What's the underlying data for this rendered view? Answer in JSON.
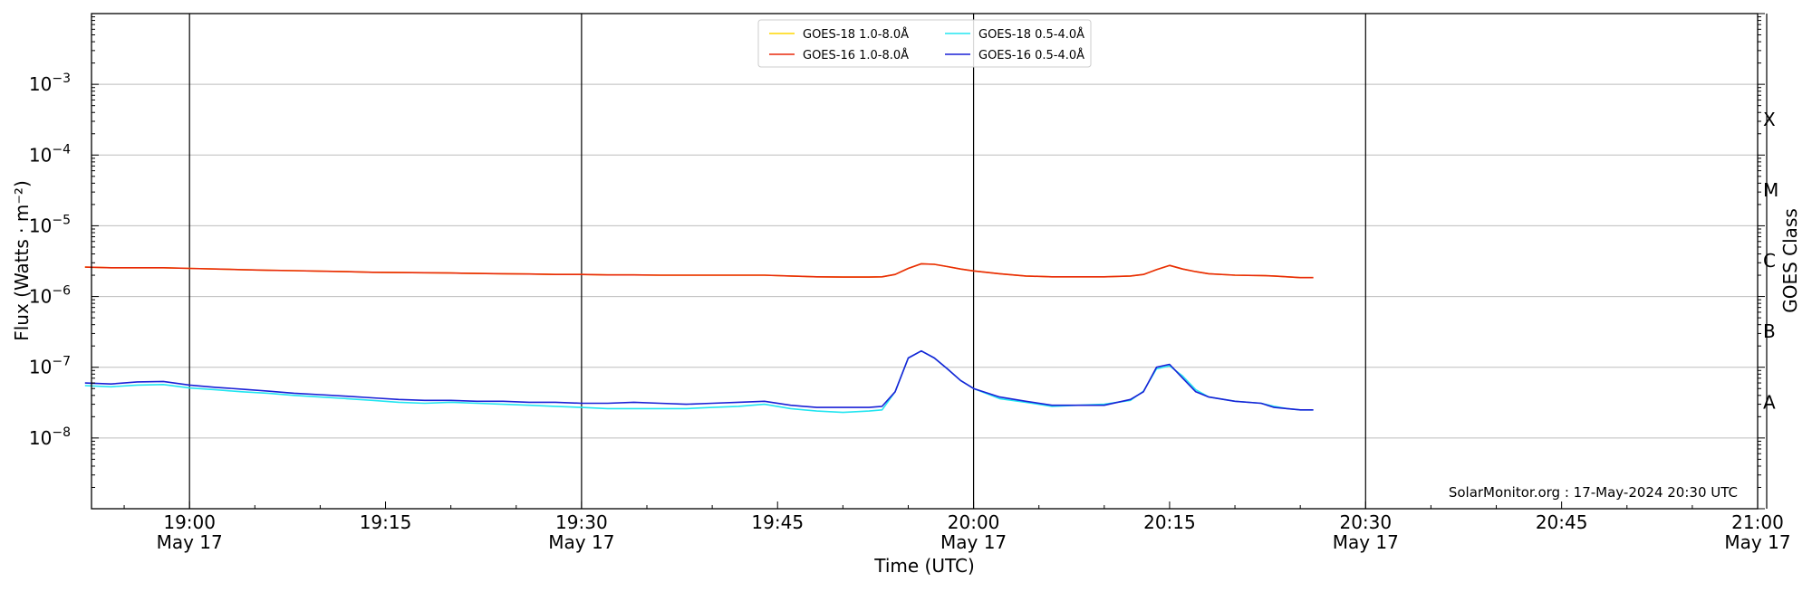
{
  "chart_data": {
    "type": "line",
    "y_scale": "log",
    "ylabel": "Flux (Watts · m⁻²)",
    "ylabel_right": "GOES Class",
    "xlabel": "Time (UTC)",
    "ylim": [
      1e-09,
      0.01
    ],
    "xlim": [
      "2024-05-17T18:52:30",
      "2024-05-17T21:00:00"
    ],
    "grid": "horizontal at decades; vertical at 30-minute marks",
    "legend": {
      "placement": "top-center",
      "columns": 2
    },
    "watermark": "SolarMonitor.org : 17-May-2024 20:30 UTC",
    "y_ticks": [
      {
        "value": 0.001,
        "base": "10",
        "exp": "−3"
      },
      {
        "value": 0.0001,
        "base": "10",
        "exp": "−4"
      },
      {
        "value": 1e-05,
        "base": "10",
        "exp": "−5"
      },
      {
        "value": 1e-06,
        "base": "10",
        "exp": "−6"
      },
      {
        "value": 1e-07,
        "base": "10",
        "exp": "−7"
      },
      {
        "value": 1e-08,
        "base": "10",
        "exp": "−8"
      }
    ],
    "x_ticks": [
      {
        "time": "2024-05-17T19:00:00",
        "label": "19:00",
        "date": "May 17"
      },
      {
        "time": "2024-05-17T19:15:00",
        "label": "19:15",
        "date": ""
      },
      {
        "time": "2024-05-17T19:30:00",
        "label": "19:30",
        "date": "May 17"
      },
      {
        "time": "2024-05-17T19:45:00",
        "label": "19:45",
        "date": ""
      },
      {
        "time": "2024-05-17T20:00:00",
        "label": "20:00",
        "date": "May 17"
      },
      {
        "time": "2024-05-17T20:15:00",
        "label": "20:15",
        "date": ""
      },
      {
        "time": "2024-05-17T20:30:00",
        "label": "20:30",
        "date": "May 17"
      },
      {
        "time": "2024-05-17T20:45:00",
        "label": "20:45",
        "date": ""
      },
      {
        "time": "2024-05-17T21:00:00",
        "label": "21:00",
        "date": "May 17"
      }
    ],
    "class_labels": [
      {
        "label": "X",
        "flux": 0.00032
      },
      {
        "label": "M",
        "flux": 3.2e-05
      },
      {
        "label": "C",
        "flux": 3.2e-06
      },
      {
        "label": "B",
        "flux": 3.2e-07
      },
      {
        "label": "A",
        "flux": 3.2e-08
      }
    ],
    "x": [
      "18:52",
      "18:54",
      "18:56",
      "18:58",
      "19:00",
      "19:02",
      "19:04",
      "19:06",
      "19:08",
      "19:10",
      "19:12",
      "19:14",
      "19:16",
      "19:18",
      "19:20",
      "19:22",
      "19:24",
      "19:26",
      "19:28",
      "19:30",
      "19:32",
      "19:34",
      "19:36",
      "19:38",
      "19:40",
      "19:42",
      "19:44",
      "19:46",
      "19:48",
      "19:50",
      "19:52",
      "19:53",
      "19:54",
      "19:55",
      "19:56",
      "19:57",
      "19:58",
      "19:59",
      "20:00",
      "20:02",
      "20:04",
      "20:06",
      "20:08",
      "20:10",
      "20:12",
      "20:13",
      "20:14",
      "20:15",
      "20:16",
      "20:17",
      "20:18",
      "20:20",
      "20:22",
      "20:23",
      "20:24",
      "20:25",
      "20:26"
    ],
    "series": [
      {
        "name": "GOES-18 1.0-8.0Å",
        "color": "#ffd700",
        "values": [
          2.6e-06,
          2.55e-06,
          2.55e-06,
          2.55e-06,
          2.5e-06,
          2.45e-06,
          2.4e-06,
          2.35e-06,
          2.32e-06,
          2.28e-06,
          2.25e-06,
          2.2e-06,
          2.18e-06,
          2.17e-06,
          2.15e-06,
          2.12e-06,
          2.1e-06,
          2.08e-06,
          2.05e-06,
          2.05e-06,
          2.02e-06,
          2.02e-06,
          2e-06,
          2e-06,
          2e-06,
          2e-06,
          2e-06,
          1.95e-06,
          1.9e-06,
          1.88e-06,
          1.88e-06,
          1.9e-06,
          2.05e-06,
          2.5e-06,
          2.9e-06,
          2.85e-06,
          2.65e-06,
          2.45e-06,
          2.3e-06,
          2.1e-06,
          1.95e-06,
          1.9e-06,
          1.9e-06,
          1.9e-06,
          1.95e-06,
          2.05e-06,
          2.4e-06,
          2.75e-06,
          2.45e-06,
          2.25e-06,
          2.1e-06,
          2e-06,
          1.98e-06,
          1.95e-06,
          1.9e-06,
          1.85e-06,
          1.85e-06
        ]
      },
      {
        "name": "GOES-16 1.0-8.0Å",
        "color": "#e8290b",
        "values": [
          2.6e-06,
          2.55e-06,
          2.55e-06,
          2.55e-06,
          2.5e-06,
          2.45e-06,
          2.4e-06,
          2.35e-06,
          2.32e-06,
          2.28e-06,
          2.25e-06,
          2.2e-06,
          2.18e-06,
          2.17e-06,
          2.15e-06,
          2.12e-06,
          2.1e-06,
          2.08e-06,
          2.05e-06,
          2.05e-06,
          2.02e-06,
          2.02e-06,
          2e-06,
          2e-06,
          2e-06,
          2e-06,
          2e-06,
          1.95e-06,
          1.9e-06,
          1.88e-06,
          1.88e-06,
          1.9e-06,
          2.05e-06,
          2.5e-06,
          2.9e-06,
          2.85e-06,
          2.65e-06,
          2.45e-06,
          2.3e-06,
          2.1e-06,
          1.95e-06,
          1.9e-06,
          1.9e-06,
          1.9e-06,
          1.95e-06,
          2.05e-06,
          2.4e-06,
          2.75e-06,
          2.45e-06,
          2.25e-06,
          2.1e-06,
          2e-06,
          1.98e-06,
          1.95e-06,
          1.9e-06,
          1.85e-06,
          1.85e-06
        ]
      },
      {
        "name": "GOES-18 0.5-4.0Å",
        "color": "#22e5f0",
        "values": [
          5.5e-08,
          5.3e-08,
          5.6e-08,
          5.7e-08,
          5.1e-08,
          4.8e-08,
          4.5e-08,
          4.3e-08,
          4e-08,
          3.8e-08,
          3.6e-08,
          3.4e-08,
          3.2e-08,
          3.1e-08,
          3.2e-08,
          3.1e-08,
          3e-08,
          2.9e-08,
          2.8e-08,
          2.7e-08,
          2.6e-08,
          2.6e-08,
          2.6e-08,
          2.6e-08,
          2.7e-08,
          2.8e-08,
          3e-08,
          2.6e-08,
          2.4e-08,
          2.3e-08,
          2.4e-08,
          2.5e-08,
          4.5e-08,
          1.35e-07,
          1.7e-07,
          1.35e-07,
          9.5e-08,
          6.5e-08,
          5e-08,
          3.6e-08,
          3.2e-08,
          2.8e-08,
          2.9e-08,
          3e-08,
          3.4e-08,
          4.6e-08,
          9.5e-08,
          1.05e-07,
          7.5e-08,
          4.8e-08,
          3.8e-08,
          3.3e-08,
          3.1e-08,
          2.8e-08,
          2.6e-08,
          2.5e-08,
          2.5e-08
        ]
      },
      {
        "name": "GOES-16 0.5-4.0Å",
        "color": "#1a21d6",
        "values": [
          6e-08,
          5.8e-08,
          6.2e-08,
          6.3e-08,
          5.6e-08,
          5.2e-08,
          4.9e-08,
          4.6e-08,
          4.3e-08,
          4.1e-08,
          3.9e-08,
          3.7e-08,
          3.5e-08,
          3.4e-08,
          3.4e-08,
          3.3e-08,
          3.3e-08,
          3.2e-08,
          3.2e-08,
          3.1e-08,
          3.1e-08,
          3.2e-08,
          3.1e-08,
          3e-08,
          3.1e-08,
          3.2e-08,
          3.3e-08,
          2.9e-08,
          2.7e-08,
          2.7e-08,
          2.7e-08,
          2.8e-08,
          4.5e-08,
          1.35e-07,
          1.7e-07,
          1.35e-07,
          9.5e-08,
          6.5e-08,
          5e-08,
          3.8e-08,
          3.3e-08,
          2.9e-08,
          2.9e-08,
          2.9e-08,
          3.5e-08,
          4.5e-08,
          1e-07,
          1.1e-07,
          7e-08,
          4.5e-08,
          3.8e-08,
          3.3e-08,
          3.1e-08,
          2.7e-08,
          2.6e-08,
          2.5e-08,
          2.5e-08
        ]
      }
    ]
  }
}
